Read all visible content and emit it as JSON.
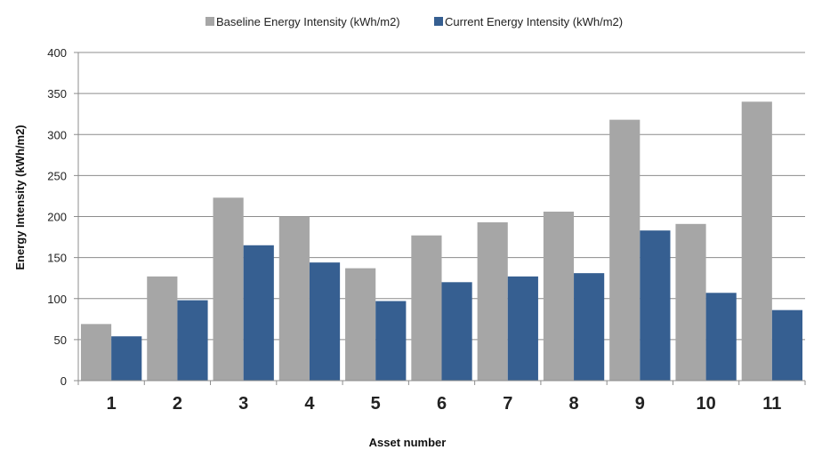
{
  "chart_data": {
    "type": "bar",
    "title": "",
    "xlabel": "Asset number",
    "ylabel": "Energy Intensity (kWh/m2)",
    "ylim": [
      0,
      400
    ],
    "yticks": [
      0,
      50,
      100,
      150,
      200,
      250,
      300,
      350,
      400
    ],
    "grid": "horizontal",
    "legend_position": "top",
    "categories": [
      "1",
      "2",
      "3",
      "4",
      "5",
      "6",
      "7",
      "8",
      "9",
      "10",
      "11"
    ],
    "series": [
      {
        "name": "Baseline Energy Intensity  (kWh/m2)",
        "color": "#a6a6a6",
        "values": [
          69,
          127,
          223,
          200,
          137,
          177,
          193,
          206,
          318,
          191,
          340
        ]
      },
      {
        "name": "Current Energy Intensity  (kWh/m2)",
        "color": "#365f91",
        "values": [
          54,
          98,
          165,
          144,
          97,
          120,
          127,
          131,
          183,
          107,
          86
        ]
      }
    ]
  }
}
